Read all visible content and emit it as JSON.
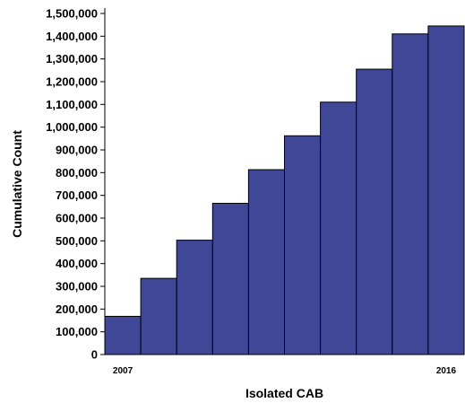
{
  "chart_data": {
    "type": "bar",
    "title": "",
    "xlabel": "Isolated CAB",
    "ylabel": "Cumulative Count",
    "categories": [
      "2007",
      "",
      "",
      "",
      "",
      "",
      "",
      "",
      "",
      "2016"
    ],
    "values": [
      168000,
      335000,
      503000,
      665000,
      813000,
      962000,
      1110000,
      1255000,
      1410000,
      1445000
    ],
    "ylim": [
      0,
      1500000
    ],
    "yticks": [
      0,
      100000,
      200000,
      300000,
      400000,
      500000,
      600000,
      700000,
      800000,
      900000,
      1000000,
      1100000,
      1200000,
      1300000,
      1400000,
      1500000
    ],
    "ytick_labels": [
      "0",
      "100,000",
      "200,000",
      "300,000",
      "400,000",
      "500,000",
      "600,000",
      "700,000",
      "800,000",
      "900,000",
      "1,000,000",
      "1,100,000",
      "1,200,000",
      "1,300,000",
      "1,400,000",
      "1,500,000"
    ],
    "bar_color": "#3f4796",
    "grid": false,
    "legend": "none"
  }
}
